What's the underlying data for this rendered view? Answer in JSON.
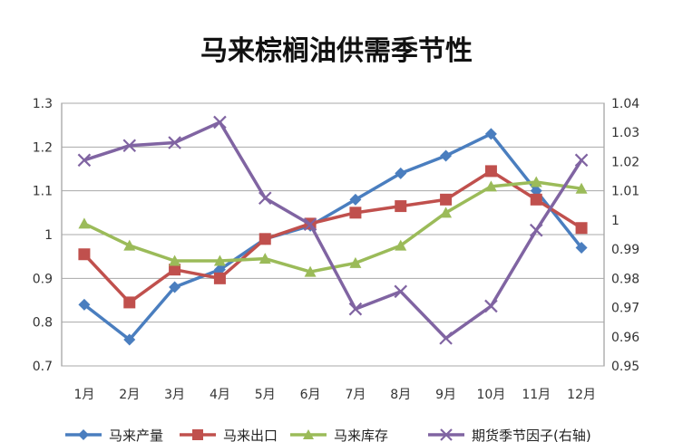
{
  "chart_data": {
    "type": "line",
    "title": "马来棕榈油供需季节性",
    "categories": [
      "1月",
      "2月",
      "3月",
      "4月",
      "5月",
      "6月",
      "7月",
      "8月",
      "9月",
      "10月",
      "11月",
      "12月"
    ],
    "y_left": {
      "ticks": [
        "1.3",
        "1.2",
        "1.1",
        "1",
        "0.9",
        "0.8",
        "0.7"
      ],
      "range": [
        0.7,
        1.3
      ]
    },
    "y_right": {
      "ticks": [
        "1.04",
        "1.03",
        "1.02",
        "1.01",
        "1",
        "0.99",
        "0.98",
        "0.97",
        "0.96",
        "0.95"
      ],
      "range": [
        0.95,
        1.04
      ]
    },
    "grid": true,
    "legend_position": "bottom",
    "series": [
      {
        "name": "马来产量",
        "axis": "left",
        "color": "#4a7ebf",
        "marker": "diamond",
        "values": [
          0.84,
          0.76,
          0.88,
          0.92,
          0.99,
          1.02,
          1.08,
          1.14,
          1.18,
          1.23,
          1.1,
          0.97
        ]
      },
      {
        "name": "马来出口",
        "axis": "left",
        "color": "#c0504d",
        "marker": "square",
        "values": [
          0.955,
          0.845,
          0.92,
          0.9,
          0.99,
          1.025,
          1.05,
          1.065,
          1.08,
          1.145,
          1.08,
          1.015
        ]
      },
      {
        "name": "马来库存",
        "axis": "left",
        "color": "#9bbb59",
        "marker": "triangle",
        "values": [
          1.025,
          0.975,
          0.94,
          0.94,
          0.945,
          0.915,
          0.935,
          0.975,
          1.05,
          1.11,
          1.12,
          1.105
        ]
      },
      {
        "name": "期货季节因子(右轴)",
        "axis": "right",
        "color": "#8064a2",
        "marker": "x",
        "values": [
          1.0205,
          1.0255,
          1.0265,
          1.0335,
          1.0075,
          0.9985,
          0.9695,
          0.9755,
          0.9595,
          0.9705,
          0.9965,
          1.0205
        ]
      }
    ]
  }
}
